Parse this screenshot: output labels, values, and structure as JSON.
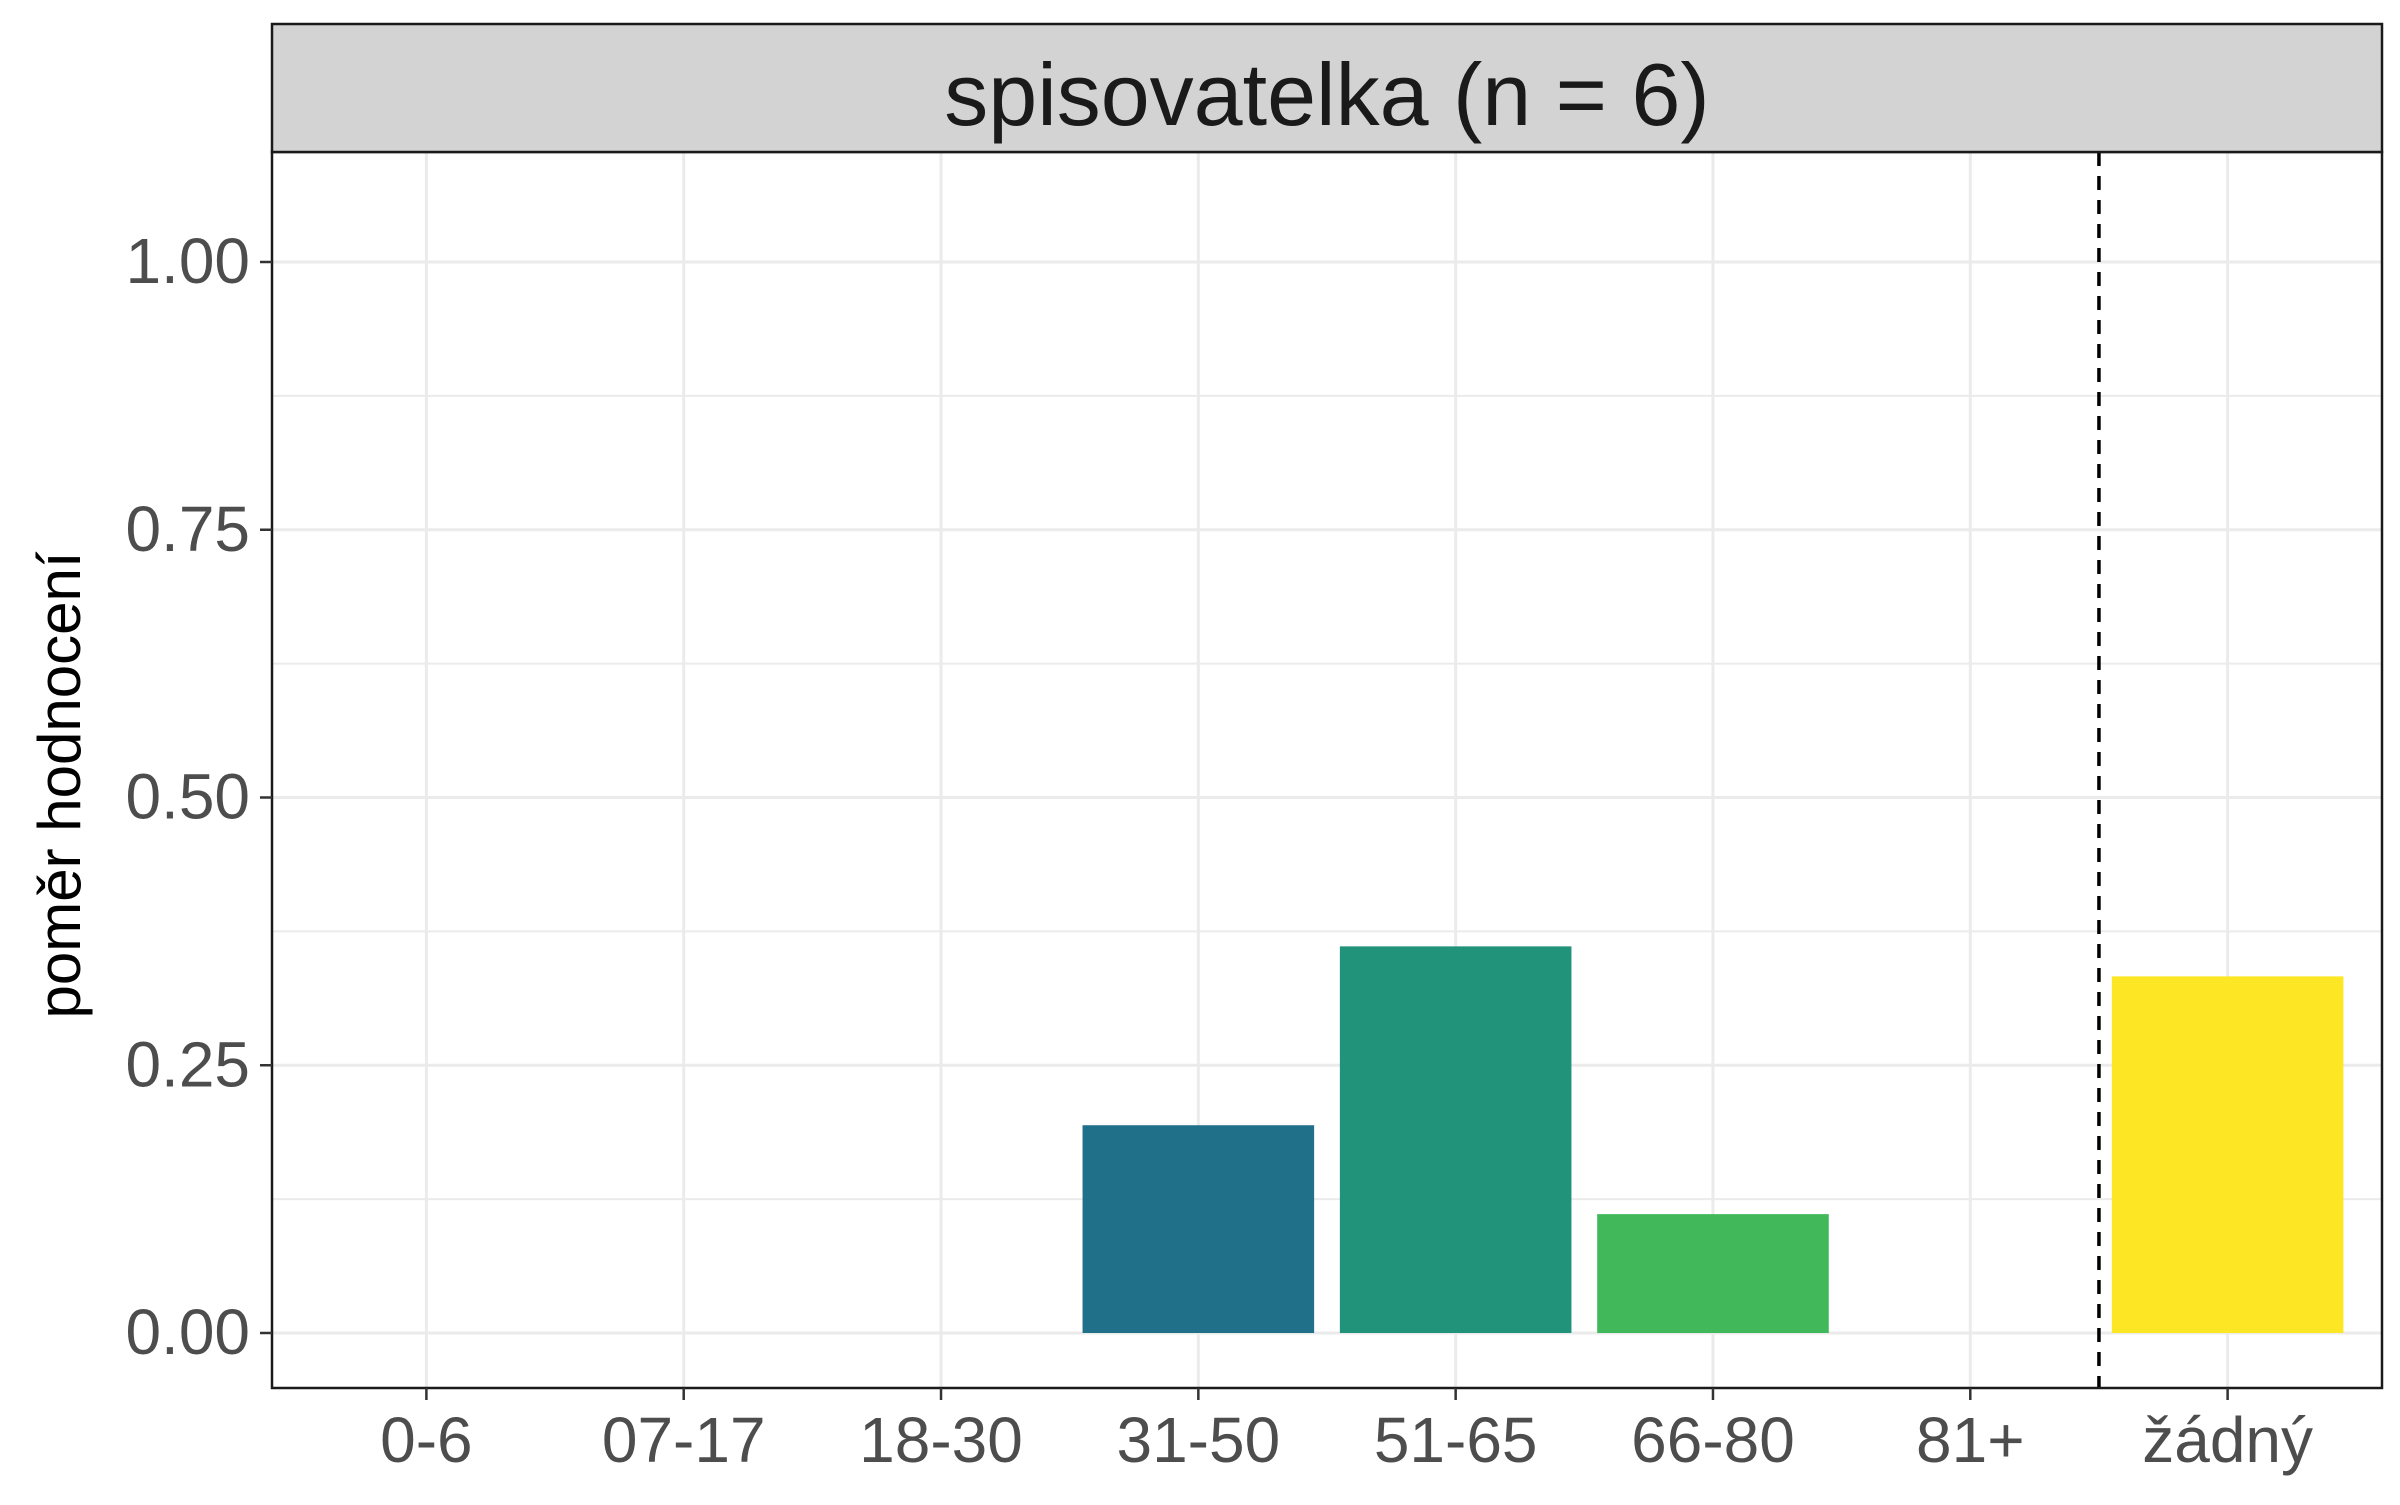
{
  "chart_data": {
    "type": "bar",
    "title": "spisovatelka (n = 6)",
    "xlabel": "",
    "ylabel": "poměr hodnocení",
    "categories": [
      "0-6",
      "07-17",
      "18-30",
      "31-50",
      "51-65",
      "66-80",
      "81+",
      "žádný"
    ],
    "values": [
      0,
      0,
      0,
      0.194,
      0.361,
      0.111,
      0,
      0.333
    ],
    "colors": [
      "#440154",
      "#46327E",
      "#365C8D",
      "#21708A",
      "#21937B",
      "#41B95B",
      "#8FD744",
      "#FDE725"
    ],
    "ylim": [
      -0.05,
      1.1
    ],
    "yticks": [
      0.0,
      0.25,
      0.5,
      0.75,
      1.0
    ],
    "ytick_labels": [
      "0.00",
      "0.25",
      "0.50",
      "0.75",
      "1.00"
    ],
    "separator": {
      "style": "dashed",
      "between": [
        "81+",
        "žádný"
      ]
    },
    "grid": true,
    "panel_strip_color": "#D3D3D3"
  }
}
